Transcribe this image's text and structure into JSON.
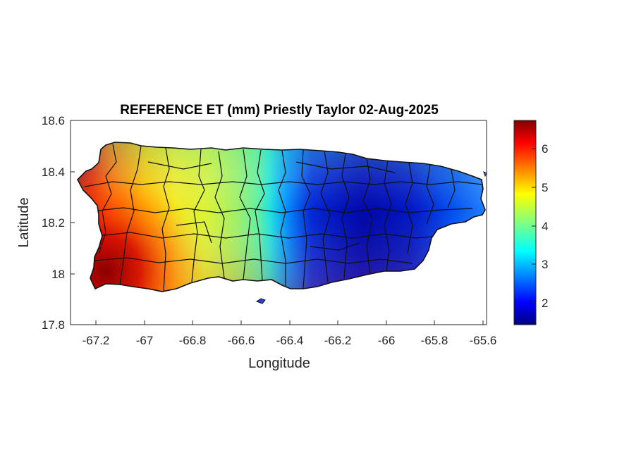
{
  "chart_data": {
    "type": "heatmap",
    "title": "REFERENCE ET (mm) Priestly Taylor 02-Aug-2025",
    "xlabel": "Longitude",
    "ylabel": "Latitude",
    "xlim": [
      -67.3,
      -65.58
    ],
    "ylim": [
      17.8,
      18.6
    ],
    "x_ticks": [
      "-67.2",
      "-67",
      "-66.8",
      "-66.6",
      "-66.4",
      "-66.2",
      "-66",
      "-65.8",
      "-65.6"
    ],
    "y_ticks": [
      "17.8",
      "18",
      "18.2",
      "18.4",
      "18.6"
    ],
    "colorbar": {
      "colormap": "jet",
      "range": [
        1.45,
        6.75
      ],
      "ticks": [
        "2",
        "3",
        "4",
        "5",
        "6"
      ]
    },
    "values_by_longitude": [
      {
        "lon": -67.2,
        "et": 5.8
      },
      {
        "lon": -67.1,
        "et": 5.4
      },
      {
        "lon": -67.0,
        "et": 5.0
      },
      {
        "lon": -66.9,
        "et": 4.9
      },
      {
        "lon": -66.8,
        "et": 4.8
      },
      {
        "lon": -66.7,
        "et": 4.4
      },
      {
        "lon": -66.6,
        "et": 3.9
      },
      {
        "lon": -66.5,
        "et": 2.9
      },
      {
        "lon": -66.4,
        "et": 2.2
      },
      {
        "lon": -66.2,
        "et": 1.9
      },
      {
        "lon": -66.0,
        "et": 1.8
      },
      {
        "lon": -65.8,
        "et": 2.2
      },
      {
        "lon": -65.7,
        "et": 2.6
      }
    ],
    "max_region": "southwest coast",
    "grid": false,
    "legend": "colorbar right"
  }
}
